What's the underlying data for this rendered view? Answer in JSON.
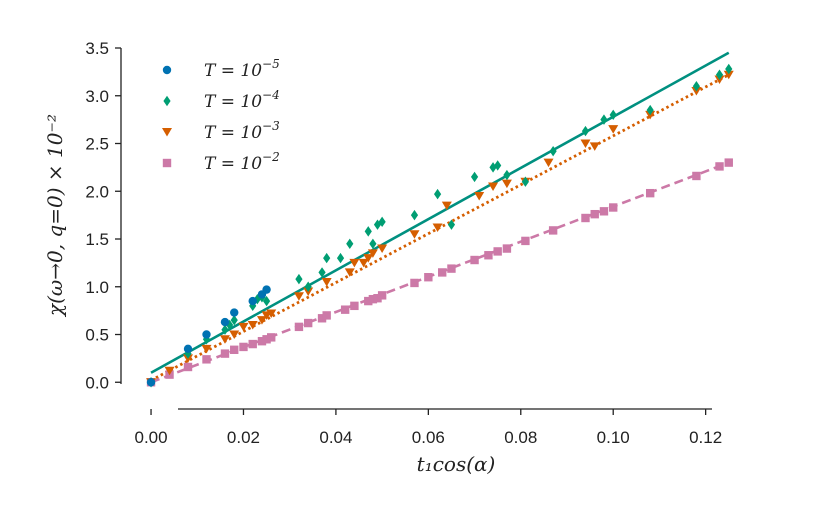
{
  "chart_data": {
    "type": "scatter",
    "title": "",
    "xlabel": "t₁cos(α)",
    "ylabel": "χ(ω→0, q=0) × 10⁻²",
    "xlim": [
      -0.0065,
      0.127
    ],
    "ylim": [
      -0.28,
      3.5
    ],
    "xticks": [
      0.0,
      0.02,
      0.04,
      0.06,
      0.08,
      0.1,
      0.12
    ],
    "xtick_labels": [
      "0.00",
      "0.02",
      "0.04",
      "0.06",
      "0.08",
      "0.10",
      "0.12"
    ],
    "yticks": [
      0.0,
      0.5,
      1.0,
      1.5,
      2.0,
      2.5,
      3.0,
      3.5
    ],
    "ytick_labels": [
      "0.0",
      "0.5",
      "1.0",
      "1.5",
      "2.0",
      "2.5",
      "3.0",
      "3.5"
    ],
    "grid": false,
    "legend_position": "top-left",
    "series": [
      {
        "name": "T=10^-5",
        "legend_text": "T = 10",
        "legend_exp": "−5",
        "marker": "circle",
        "color": "#0072b2",
        "x": [
          0.0,
          0.008,
          0.012,
          0.016,
          0.018,
          0.022,
          0.024,
          0.025
        ],
        "y": [
          0.0,
          0.35,
          0.5,
          0.63,
          0.73,
          0.85,
          0.92,
          0.97
        ]
      },
      {
        "name": "T=10^-4",
        "legend_text": "T = 10",
        "legend_exp": "−4",
        "marker": "diamond",
        "color": "#009e73",
        "x": [
          0.0,
          0.008,
          0.012,
          0.016,
          0.017,
          0.018,
          0.022,
          0.023,
          0.024,
          0.025,
          0.032,
          0.034,
          0.037,
          0.038,
          0.041,
          0.043,
          0.047,
          0.048,
          0.049,
          0.05,
          0.057,
          0.062,
          0.065,
          0.07,
          0.074,
          0.075,
          0.077,
          0.081,
          0.087,
          0.094,
          0.098,
          0.1,
          0.108,
          0.118,
          0.123,
          0.125
        ],
        "y": [
          0.0,
          0.3,
          0.45,
          0.55,
          0.6,
          0.65,
          0.8,
          0.87,
          0.89,
          0.85,
          1.08,
          1.0,
          1.15,
          1.3,
          1.3,
          1.45,
          1.58,
          1.45,
          1.65,
          1.68,
          1.75,
          1.97,
          1.65,
          2.15,
          2.25,
          2.27,
          2.17,
          2.1,
          2.42,
          2.63,
          2.75,
          2.8,
          2.85,
          3.1,
          3.22,
          3.28
        ]
      },
      {
        "name": "T=10^-3",
        "legend_text": "T = 10",
        "legend_exp": "−3",
        "marker": "triangle-down",
        "color": "#d55e00",
        "x": [
          0.0,
          0.004,
          0.008,
          0.012,
          0.016,
          0.018,
          0.02,
          0.022,
          0.024,
          0.025,
          0.026,
          0.032,
          0.034,
          0.038,
          0.043,
          0.044,
          0.046,
          0.047,
          0.048,
          0.05,
          0.057,
          0.062,
          0.064,
          0.071,
          0.074,
          0.077,
          0.081,
          0.086,
          0.094,
          0.096,
          0.1,
          0.108,
          0.118,
          0.123,
          0.125
        ],
        "y": [
          0.0,
          0.12,
          0.25,
          0.35,
          0.45,
          0.5,
          0.58,
          0.6,
          0.65,
          0.7,
          0.72,
          0.9,
          0.95,
          1.05,
          1.15,
          1.25,
          1.25,
          1.3,
          1.35,
          1.4,
          1.55,
          1.62,
          1.85,
          1.95,
          2.05,
          2.08,
          2.1,
          2.3,
          2.5,
          2.47,
          2.65,
          2.8,
          3.05,
          3.17,
          3.22
        ]
      },
      {
        "name": "T=10^-2",
        "legend_text": "T = 10",
        "legend_exp": "−2",
        "marker": "square",
        "color": "#cc79a7",
        "x": [
          0.0,
          0.004,
          0.008,
          0.012,
          0.016,
          0.018,
          0.02,
          0.022,
          0.024,
          0.025,
          0.026,
          0.032,
          0.034,
          0.037,
          0.038,
          0.042,
          0.044,
          0.047,
          0.048,
          0.049,
          0.05,
          0.057,
          0.06,
          0.063,
          0.065,
          0.07,
          0.073,
          0.075,
          0.077,
          0.081,
          0.087,
          0.094,
          0.096,
          0.098,
          0.1,
          0.108,
          0.118,
          0.123,
          0.125
        ],
        "y": [
          0.0,
          0.08,
          0.16,
          0.24,
          0.3,
          0.34,
          0.37,
          0.4,
          0.43,
          0.45,
          0.47,
          0.58,
          0.62,
          0.67,
          0.7,
          0.76,
          0.8,
          0.85,
          0.87,
          0.88,
          0.91,
          1.04,
          1.1,
          1.15,
          1.19,
          1.28,
          1.33,
          1.37,
          1.4,
          1.48,
          1.59,
          1.72,
          1.76,
          1.79,
          1.83,
          1.98,
          2.16,
          2.26,
          2.3
        ]
      }
    ],
    "fit_lines": [
      {
        "name": "fit-T-1e-4",
        "style": "solid",
        "color": "#009080",
        "x": [
          0.0,
          0.125
        ],
        "y": [
          0.1,
          3.45
        ]
      },
      {
        "name": "fit-T-1e-3",
        "style": "dotted",
        "color": "#d55e00",
        "x": [
          0.0,
          0.125
        ],
        "y": [
          0.02,
          3.22
        ]
      },
      {
        "name": "fit-T-1e-2",
        "style": "dashed",
        "color": "#cc79a7",
        "x": [
          0.0,
          0.125
        ],
        "y": [
          0.0,
          2.3
        ]
      }
    ]
  }
}
